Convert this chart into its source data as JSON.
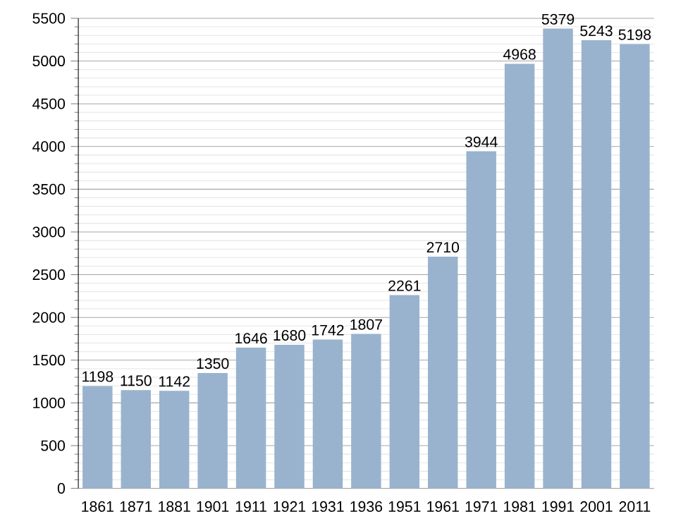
{
  "chart_data": {
    "type": "bar",
    "categories": [
      "1861",
      "1871",
      "1881",
      "1901",
      "1911",
      "1921",
      "1931",
      "1936",
      "1951",
      "1961",
      "1971",
      "1981",
      "1991",
      "2001",
      "2011"
    ],
    "values": [
      1198,
      1150,
      1142,
      1350,
      1646,
      1680,
      1742,
      1807,
      2261,
      2710,
      3944,
      4968,
      5379,
      5243,
      5198
    ],
    "color": "#99b3cf",
    "ylim": [
      0,
      5500
    ],
    "yticks": [
      0,
      500,
      1000,
      1500,
      2000,
      2500,
      3000,
      3500,
      4000,
      4500,
      5000,
      5500
    ],
    "grid": "y",
    "data_labels": true
  }
}
